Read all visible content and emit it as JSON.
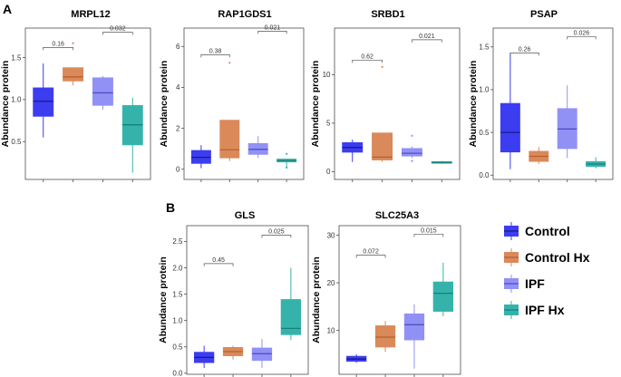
{
  "panel_labels": [
    "A",
    "B"
  ],
  "colors": {
    "Control": "#3c3cf0",
    "Control Hx": "#d9895a",
    "IPF": "#9191f5",
    "IPF Hx": "#35b3ab",
    "Control_median": "#1a1a8c",
    "Control Hx_median": "#b8602e",
    "IPF_median": "#5050c8",
    "IPF Hx_median": "#16807a"
  },
  "legend": {
    "items": [
      {
        "label": "Control",
        "group": "Control"
      },
      {
        "label": "Control Hx",
        "group": "Control Hx"
      },
      {
        "label": "IPF",
        "group": "IPF"
      },
      {
        "label": "IPF Hx",
        "group": "IPF Hx"
      }
    ]
  },
  "chart_data": [
    {
      "type": "box",
      "panel": "A",
      "title": "MRPL12",
      "ylabel": "Abundance protein",
      "ylim": [
        0.05,
        1.85
      ],
      "yticks": [
        0.5,
        1.0,
        1.5
      ],
      "tick_labels": [
        "0.5",
        "1.0",
        "1.5"
      ],
      "boxes": [
        {
          "group": "Control",
          "whislo": 0.55,
          "q1": 0.8,
          "med": 0.98,
          "q3": 1.14,
          "whishi": 1.43,
          "outliers": []
        },
        {
          "group": "Control Hx",
          "whislo": 1.17,
          "q1": 1.22,
          "med": 1.27,
          "q3": 1.38,
          "whishi": 1.38,
          "outliers": [
            1.67
          ]
        },
        {
          "group": "IPF",
          "whislo": 0.88,
          "q1": 0.93,
          "med": 1.08,
          "q3": 1.26,
          "whishi": 1.28,
          "outliers": []
        },
        {
          "group": "IPF Hx",
          "whislo": 0.13,
          "q1": 0.46,
          "med": 0.7,
          "q3": 0.93,
          "whishi": 1.02,
          "outliers": []
        }
      ],
      "comparisons": [
        {
          "from": 0,
          "to": 1,
          "label": "0.16",
          "y": 1.62
        },
        {
          "from": 2,
          "to": 3,
          "label": "0.032",
          "y": 1.8
        }
      ]
    },
    {
      "type": "box",
      "panel": "A",
      "title": "RAP1GDS1",
      "ylabel": "Abundance protein",
      "ylim": [
        -0.5,
        6.9
      ],
      "yticks": [
        0,
        2,
        4,
        6
      ],
      "tick_labels": [
        "0",
        "2",
        "4",
        "6"
      ],
      "boxes": [
        {
          "group": "Control",
          "whislo": 0.05,
          "q1": 0.28,
          "med": 0.58,
          "q3": 0.92,
          "whishi": 1.18,
          "outliers": []
        },
        {
          "group": "Control Hx",
          "whislo": 0.4,
          "q1": 0.55,
          "med": 0.95,
          "q3": 2.4,
          "whishi": 2.4,
          "outliers": [
            5.2
          ]
        },
        {
          "group": "IPF",
          "whislo": 0.55,
          "q1": 0.72,
          "med": 0.97,
          "q3": 1.26,
          "whishi": 1.62,
          "outliers": []
        },
        {
          "group": "IPF Hx",
          "whislo": 0.1,
          "q1": 0.35,
          "med": 0.42,
          "q3": 0.5,
          "whishi": 0.52,
          "outliers": [
            0.75,
            0.08
          ]
        }
      ],
      "comparisons": [
        {
          "from": 0,
          "to": 1,
          "label": "0.38",
          "y": 5.6
        },
        {
          "from": 2,
          "to": 3,
          "label": "0.021",
          "y": 6.75
        }
      ]
    },
    {
      "type": "box",
      "panel": "A",
      "title": "SRBD1",
      "ylabel": "Abundance protein",
      "ylim": [
        -0.8,
        14.8
      ],
      "yticks": [
        0,
        5,
        10
      ],
      "tick_labels": [
        "0",
        "5",
        "10"
      ],
      "boxes": [
        {
          "group": "Control",
          "whislo": 1.0,
          "q1": 2.0,
          "med": 2.5,
          "q3": 3.0,
          "whishi": 3.3,
          "outliers": []
        },
        {
          "group": "Control Hx",
          "whislo": 1.0,
          "q1": 1.2,
          "med": 1.5,
          "q3": 4.0,
          "whishi": 4.0,
          "outliers": [
            10.8
          ]
        },
        {
          "group": "IPF",
          "whislo": 1.4,
          "q1": 1.6,
          "med": 1.9,
          "q3": 2.4,
          "whishi": 2.6,
          "outliers": [
            3.7,
            1.1
          ]
        },
        {
          "group": "IPF Hx",
          "whislo": 0.8,
          "q1": 0.85,
          "med": 0.95,
          "q3": 1.05,
          "whishi": 1.1,
          "outliers": []
        }
      ],
      "comparisons": [
        {
          "from": 0,
          "to": 1,
          "label": "0.62",
          "y": 11.5
        },
        {
          "from": 2,
          "to": 3,
          "label": "0.021",
          "y": 13.6
        }
      ]
    },
    {
      "type": "box",
      "panel": "A",
      "title": "PSAP",
      "ylabel": "Abundance protein",
      "ylim": [
        -0.05,
        1.72
      ],
      "yticks": [
        0.0,
        0.5,
        1.0,
        1.5
      ],
      "tick_labels": [
        "0.0",
        "0.5",
        "1.0",
        "1.5"
      ],
      "boxes": [
        {
          "group": "Control",
          "whislo": 0.07,
          "q1": 0.27,
          "med": 0.5,
          "q3": 0.84,
          "whishi": 1.42,
          "outliers": []
        },
        {
          "group": "Control Hx",
          "whislo": 0.13,
          "q1": 0.16,
          "med": 0.22,
          "q3": 0.28,
          "whishi": 0.33,
          "outliers": []
        },
        {
          "group": "IPF",
          "whislo": 0.2,
          "q1": 0.31,
          "med": 0.54,
          "q3": 0.78,
          "whishi": 1.05,
          "outliers": []
        },
        {
          "group": "IPF Hx",
          "whislo": 0.08,
          "q1": 0.1,
          "med": 0.13,
          "q3": 0.16,
          "whishi": 0.21,
          "outliers": []
        }
      ],
      "comparisons": [
        {
          "from": 0,
          "to": 1,
          "label": "0.26",
          "y": 1.43
        },
        {
          "from": 2,
          "to": 3,
          "label": "0.026",
          "y": 1.62
        }
      ]
    },
    {
      "type": "box",
      "panel": "B",
      "title": "GLS",
      "ylabel": "Abundance protein",
      "ylim": [
        -0.02,
        2.8
      ],
      "yticks": [
        0.0,
        0.5,
        1.0,
        1.5,
        2.0,
        2.5
      ],
      "tick_labels": [
        "0.0",
        "0.5",
        "1.0",
        "1.5",
        "2.0",
        "2.5"
      ],
      "boxes": [
        {
          "group": "Control",
          "whislo": 0.1,
          "q1": 0.2,
          "med": 0.3,
          "q3": 0.4,
          "whishi": 0.52,
          "outliers": []
        },
        {
          "group": "Control Hx",
          "whislo": 0.26,
          "q1": 0.33,
          "med": 0.41,
          "q3": 0.49,
          "whishi": 0.52,
          "outliers": []
        },
        {
          "group": "IPF",
          "whislo": 0.1,
          "q1": 0.24,
          "med": 0.37,
          "q3": 0.48,
          "whishi": 0.65,
          "outliers": []
        },
        {
          "group": "IPF Hx",
          "whislo": 0.63,
          "q1": 0.73,
          "med": 0.85,
          "q3": 1.4,
          "whishi": 2.0,
          "outliers": []
        }
      ],
      "comparisons": [
        {
          "from": 0,
          "to": 1,
          "label": "0.45",
          "y": 2.08
        },
        {
          "from": 2,
          "to": 3,
          "label": "0.025",
          "y": 2.62
        }
      ]
    },
    {
      "type": "box",
      "panel": "B",
      "title": "SLC25A3",
      "ylabel": "Abundance protein",
      "ylim": [
        0.8,
        32.0
      ],
      "yticks": [
        10,
        20,
        30
      ],
      "tick_labels": [
        "10",
        "20",
        "30"
      ],
      "boxes": [
        {
          "group": "Control",
          "whislo": 3.2,
          "q1": 3.5,
          "med": 4.0,
          "q3": 4.6,
          "whishi": 5.0,
          "outliers": []
        },
        {
          "group": "Control Hx",
          "whislo": 5.5,
          "q1": 6.5,
          "med": 8.6,
          "q3": 11.0,
          "whishi": 12.0,
          "outliers": []
        },
        {
          "group": "IPF",
          "whislo": 2.0,
          "q1": 8.0,
          "med": 11.2,
          "q3": 13.5,
          "whishi": 15.5,
          "outliers": []
        },
        {
          "group": "IPF Hx",
          "whislo": 13.0,
          "q1": 14.0,
          "med": 17.8,
          "q3": 20.2,
          "whishi": 24.2,
          "outliers": []
        }
      ],
      "comparisons": [
        {
          "from": 0,
          "to": 1,
          "label": "0.072",
          "y": 25.8
        },
        {
          "from": 2,
          "to": 3,
          "label": "0.015",
          "y": 30.2
        }
      ]
    }
  ]
}
